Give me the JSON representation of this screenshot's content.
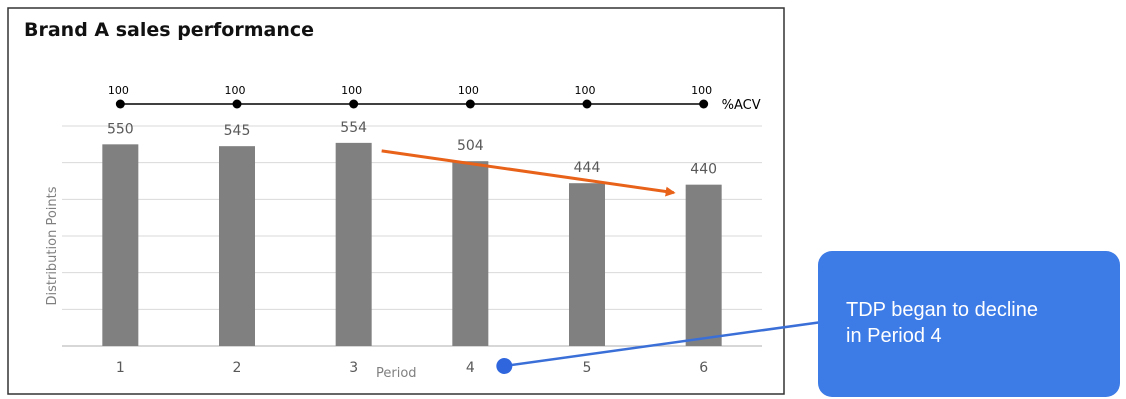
{
  "chart_data": {
    "type": "bar",
    "title": "Brand A sales performance",
    "categories": [
      "1",
      "2",
      "3",
      "4",
      "5",
      "6"
    ],
    "values": [
      550,
      545,
      554,
      504,
      444,
      440
    ],
    "xlabel": "Period",
    "ylabel": "Distribution Points",
    "ylim": [
      0,
      600
    ],
    "grid": true,
    "bar_color": "#808080",
    "overlay_series": {
      "name": "%ACV",
      "values": [
        100,
        100,
        100,
        100,
        100,
        100
      ],
      "color": "#000000"
    },
    "annotations": {
      "trend_arrow": {
        "from_category": "3",
        "to_category": "6",
        "color": "#e8621a"
      },
      "callout": {
        "lines": [
          "TDP began to decline",
          "in Period 4"
        ],
        "points_to_category": "4",
        "color": "#3d7be6"
      }
    }
  }
}
